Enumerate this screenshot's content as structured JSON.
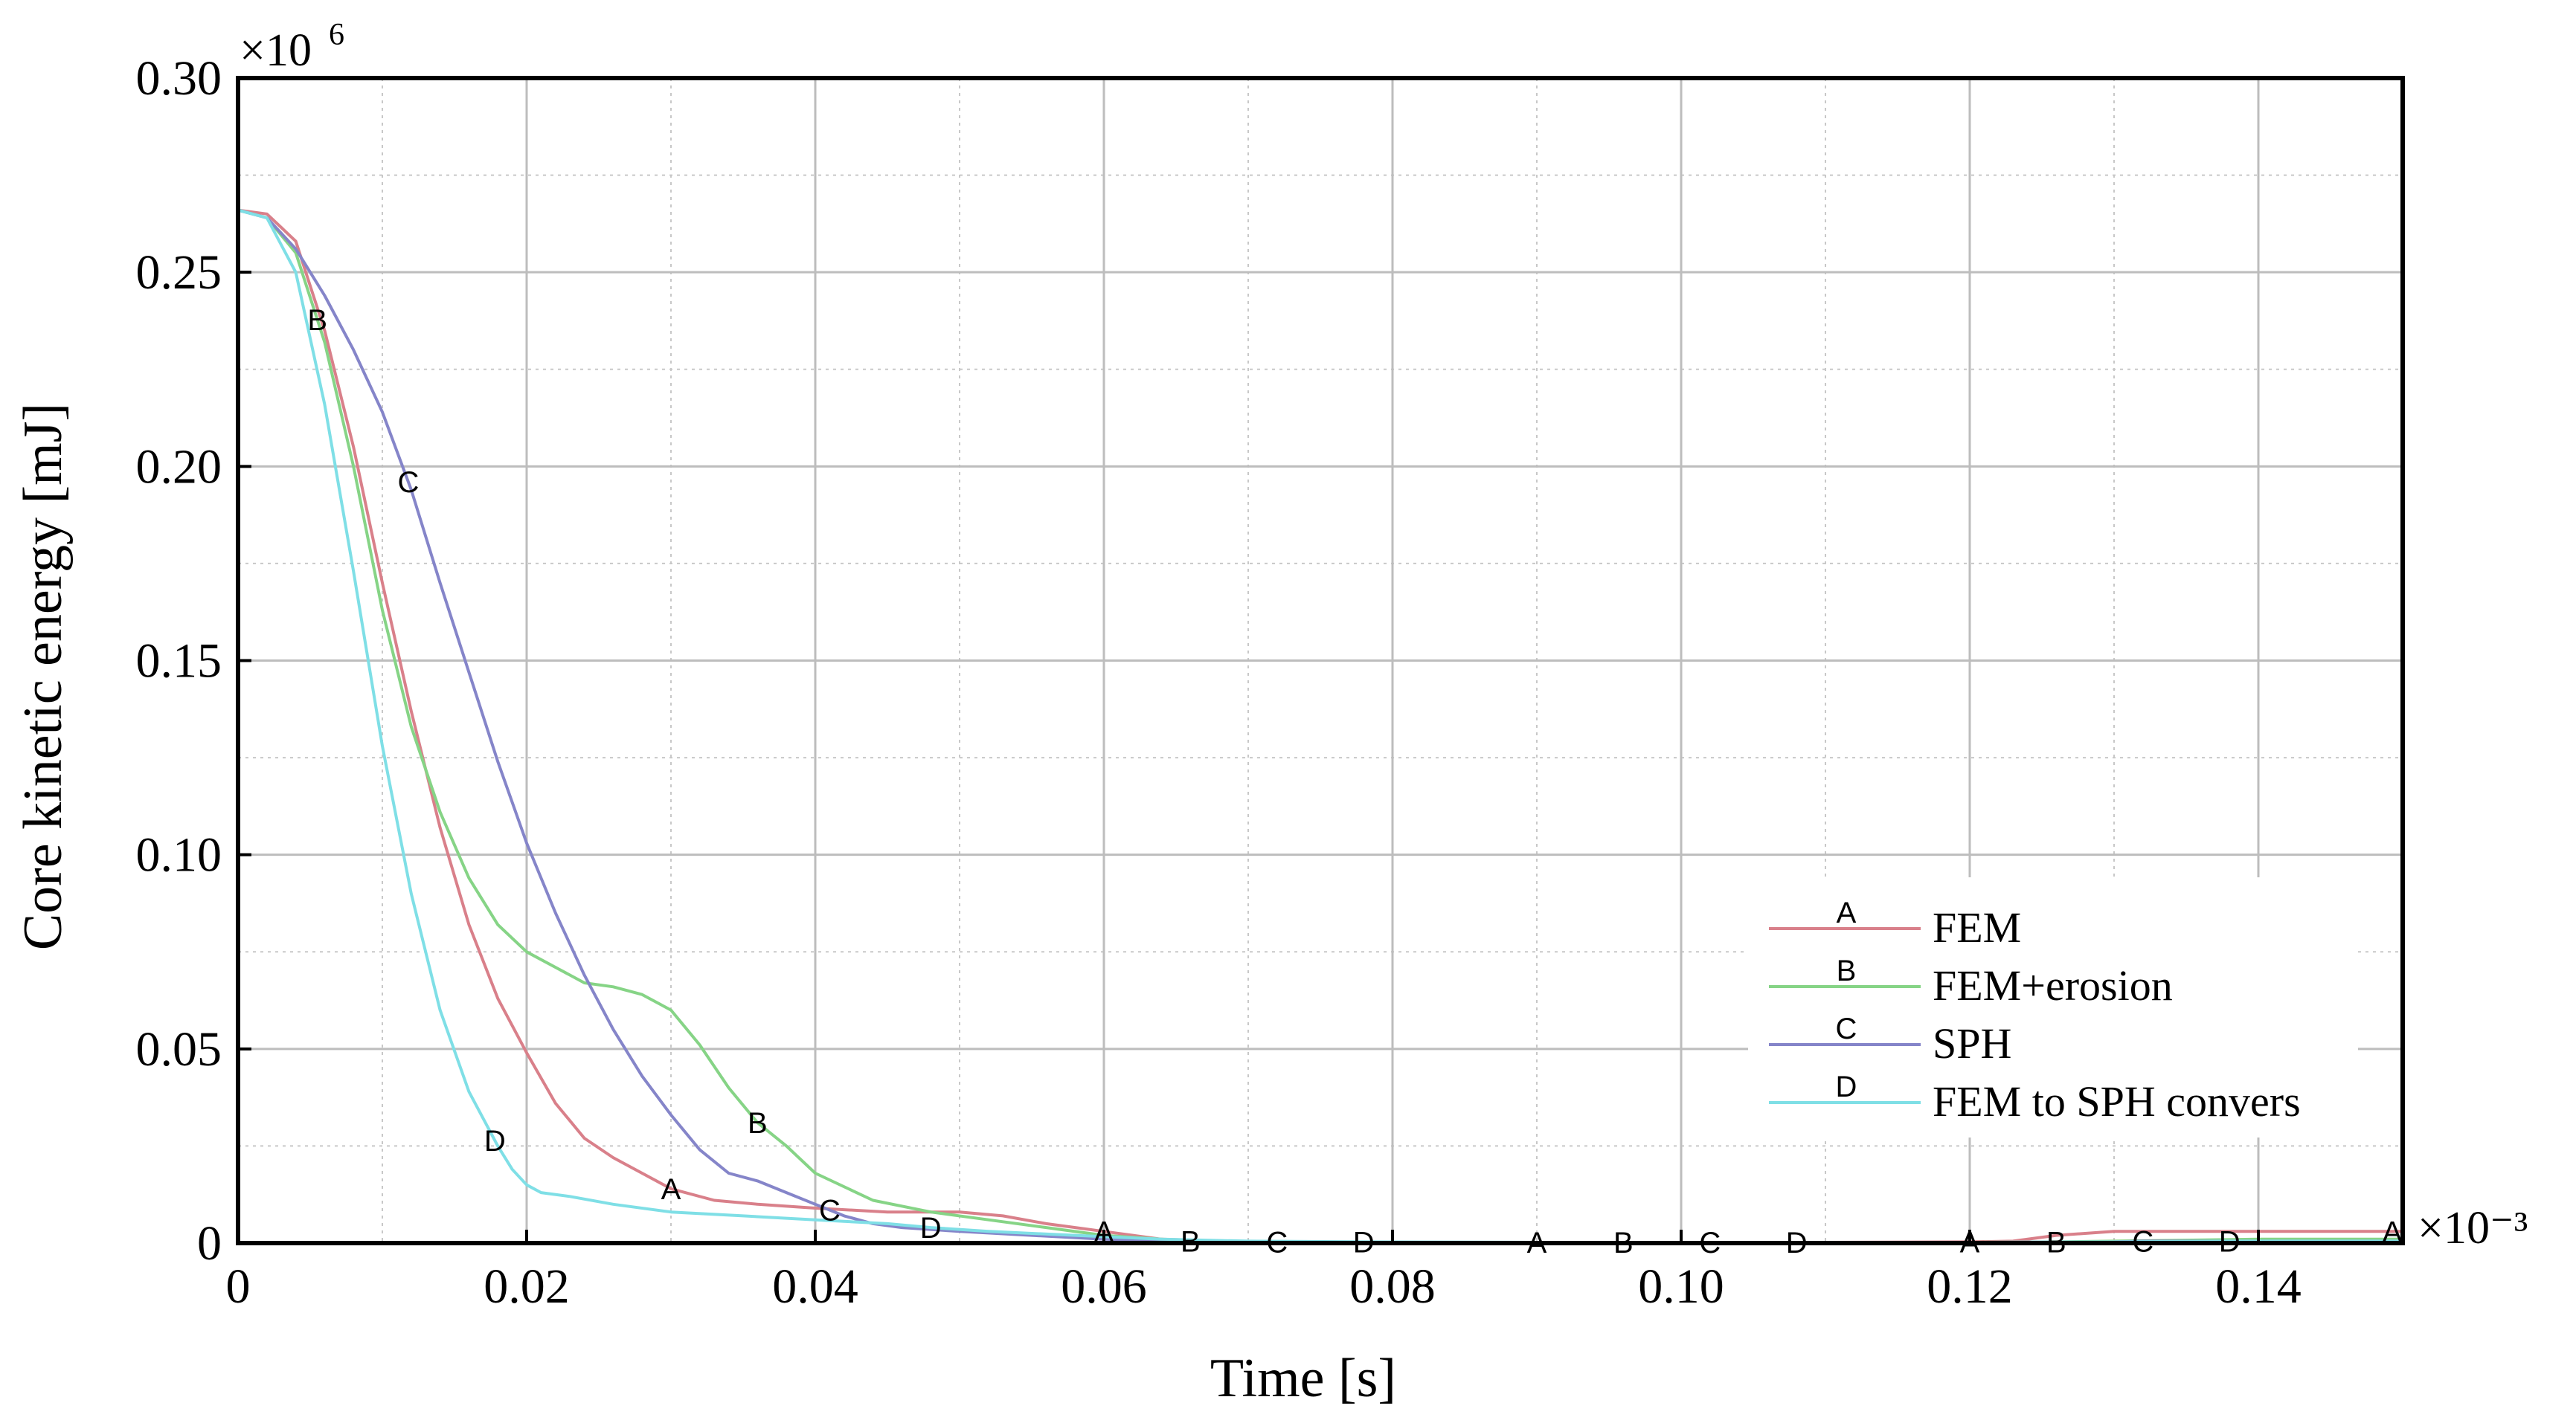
{
  "chart_data": {
    "type": "line",
    "title": "",
    "xlabel": "Time [s]",
    "ylabel": "Core kinetic energy [mJ]",
    "x_multiplier": "×10⁻³",
    "y_multiplier_base": "×10",
    "y_multiplier_exp": "6",
    "xlim": [
      0,
      0.15
    ],
    "ylim": [
      0,
      0.3
    ],
    "x_ticks": [
      0,
      0.02,
      0.04,
      0.06,
      0.08,
      0.1,
      0.12,
      0.14
    ],
    "x_tick_labels": [
      "0",
      "0.02",
      "0.04",
      "0.06",
      "0.08",
      "0.10",
      "0.12",
      "0.14"
    ],
    "y_ticks": [
      0,
      0.05,
      0.1,
      0.15,
      0.2,
      0.25,
      0.3
    ],
    "y_tick_labels": [
      "0",
      "0.05",
      "0.10",
      "0.15",
      "0.20",
      "0.25",
      "0.30"
    ],
    "grid": true,
    "legend_position": "lower-right",
    "series": [
      {
        "name": "FEM",
        "marker": "A",
        "color": "#d9808a",
        "x": [
          0,
          0.002,
          0.004,
          0.006,
          0.008,
          0.01,
          0.012,
          0.014,
          0.016,
          0.018,
          0.02,
          0.022,
          0.024,
          0.026,
          0.028,
          0.03,
          0.033,
          0.036,
          0.04,
          0.045,
          0.05,
          0.053,
          0.056,
          0.06,
          0.064,
          0.07,
          0.08,
          0.09,
          0.1,
          0.11,
          0.12,
          0.123,
          0.126,
          0.13,
          0.14,
          0.15
        ],
        "y": [
          0.266,
          0.265,
          0.258,
          0.235,
          0.205,
          0.17,
          0.137,
          0.107,
          0.082,
          0.063,
          0.049,
          0.036,
          0.027,
          0.022,
          0.018,
          0.014,
          0.011,
          0.01,
          0.009,
          0.008,
          0.008,
          0.007,
          0.005,
          0.003,
          0.001,
          0.0003,
          0.0002,
          0.0002,
          0.0002,
          0.0002,
          0.0003,
          0.0005,
          0.002,
          0.003,
          0.003,
          0.003
        ],
        "marker_x": [
          0.03,
          0.06,
          0.09,
          0.12,
          0.15
        ]
      },
      {
        "name": "FEM+erosion",
        "marker": "B",
        "color": "#86d486",
        "x": [
          0,
          0.002,
          0.004,
          0.006,
          0.008,
          0.01,
          0.012,
          0.014,
          0.016,
          0.018,
          0.02,
          0.022,
          0.024,
          0.026,
          0.028,
          0.03,
          0.032,
          0.034,
          0.036,
          0.038,
          0.04,
          0.044,
          0.048,
          0.052,
          0.056,
          0.06,
          0.066,
          0.07,
          0.08,
          0.09,
          0.1,
          0.11,
          0.12,
          0.126,
          0.13,
          0.14,
          0.15
        ],
        "y": [
          0.266,
          0.264,
          0.255,
          0.232,
          0.2,
          0.163,
          0.133,
          0.111,
          0.094,
          0.082,
          0.075,
          0.071,
          0.067,
          0.066,
          0.064,
          0.06,
          0.051,
          0.04,
          0.031,
          0.025,
          0.018,
          0.011,
          0.008,
          0.006,
          0.004,
          0.002,
          0.0005,
          0.0003,
          0.0002,
          0.0002,
          0.0002,
          0.0002,
          0.0002,
          0.0003,
          0.0005,
          0.001,
          0.001
        ],
        "marker_x": [
          0.0055,
          0.036,
          0.066,
          0.096,
          0.126
        ]
      },
      {
        "name": "SPH",
        "marker": "C",
        "color": "#8585c9",
        "x": [
          0,
          0.002,
          0.004,
          0.006,
          0.008,
          0.01,
          0.012,
          0.014,
          0.016,
          0.018,
          0.02,
          0.022,
          0.024,
          0.026,
          0.028,
          0.03,
          0.032,
          0.034,
          0.036,
          0.038,
          0.04,
          0.042,
          0.044,
          0.046,
          0.05,
          0.055,
          0.06,
          0.066,
          0.072,
          0.08,
          0.09,
          0.1,
          0.11,
          0.12,
          0.13,
          0.132,
          0.14,
          0.15
        ],
        "y": [
          0.266,
          0.264,
          0.256,
          0.244,
          0.23,
          0.214,
          0.194,
          0.17,
          0.147,
          0.124,
          0.103,
          0.085,
          0.069,
          0.055,
          0.043,
          0.033,
          0.024,
          0.018,
          0.016,
          0.013,
          0.01,
          0.007,
          0.005,
          0.004,
          0.003,
          0.002,
          0.001,
          0.0005,
          0.0003,
          0.0002,
          0.0002,
          0.0002,
          0.0002,
          0.0002,
          0.0003,
          0.0005,
          0.0005,
          0.0005
        ],
        "marker_x": [
          0.0118,
          0.041,
          0.072,
          0.102,
          0.132
        ]
      },
      {
        "name": "FEM to SPH convers",
        "marker": "D",
        "color": "#7fdfe6",
        "x": [
          0,
          0.002,
          0.004,
          0.006,
          0.008,
          0.01,
          0.012,
          0.014,
          0.016,
          0.018,
          0.019,
          0.02,
          0.021,
          0.023,
          0.026,
          0.03,
          0.035,
          0.04,
          0.045,
          0.048,
          0.052,
          0.058,
          0.064,
          0.07,
          0.078,
          0.09,
          0.1,
          0.108,
          0.12,
          0.13,
          0.138,
          0.15
        ],
        "y": [
          0.266,
          0.264,
          0.25,
          0.216,
          0.173,
          0.128,
          0.09,
          0.06,
          0.039,
          0.025,
          0.019,
          0.015,
          0.013,
          0.012,
          0.01,
          0.008,
          0.007,
          0.006,
          0.005,
          0.004,
          0.003,
          0.002,
          0.001,
          0.0005,
          0.0003,
          0.0002,
          0.0002,
          0.0002,
          0.0002,
          0.0003,
          0.0005,
          0.0005
        ],
        "marker_x": [
          0.0178,
          0.048,
          0.078,
          0.108,
          0.138
        ]
      }
    ]
  }
}
